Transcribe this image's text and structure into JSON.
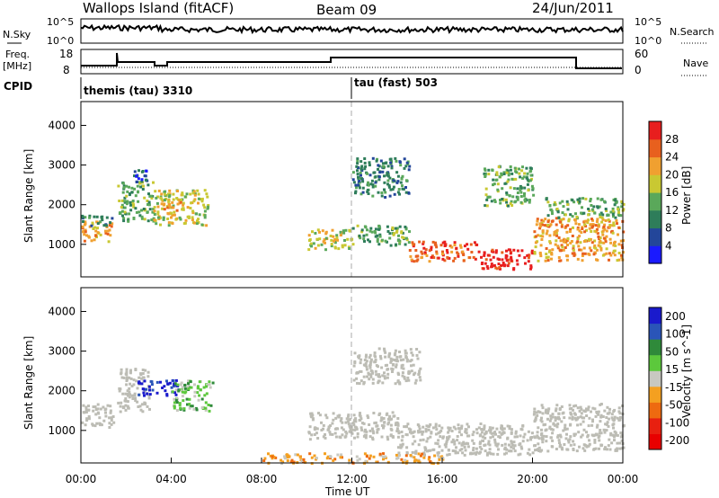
{
  "header": {
    "station": "Wallops Island (fitACF)",
    "beam": "Beam 09",
    "date": "24/Jun/2011"
  },
  "panel_labels": {
    "nsky": "N.Sky",
    "nsearch": "N.Search",
    "freq": "Freq.",
    "freq_unit": "[MHz]",
    "nave": "Nave",
    "cpid": "CPID"
  },
  "small_axes": {
    "noise_left_ticks": [
      "10^5",
      "10^0"
    ],
    "noise_right_ticks": [
      "10^5",
      "10^0"
    ],
    "freq_left_ticks": [
      "18",
      "8"
    ],
    "nave_right_ticks": [
      "60",
      "0"
    ]
  },
  "cpid_segments": [
    {
      "label": "themis (tau) 3310",
      "start_h": 0
    },
    {
      "label": "tau (fast) 503",
      "start_h": 12
    }
  ],
  "colors": {
    "power_scale": [
      "#1a1aff",
      "#23469a",
      "#2e7d5a",
      "#5aa85a",
      "#c9c832",
      "#f0a030",
      "#e8601e",
      "#e81e1e"
    ],
    "velocity_scale": [
      "#1a1acc",
      "#2a55b8",
      "#2f8a3a",
      "#5cc83c",
      "#c8c8c0",
      "#f4a020",
      "#ee6a10",
      "#e82010",
      "#e80000"
    ],
    "ground_scatter": "#bcbcb4"
  },
  "chart_data": [
    {
      "type": "heatmap",
      "name": "power",
      "ylabel": "Slant Range [km]",
      "xlim": [
        "00:00",
        "24:00"
      ],
      "ylim": [
        180,
        4600
      ],
      "y_ticks": [
        1000,
        2000,
        3000,
        4000
      ],
      "colorbar_label": "Power [dB]",
      "colorbar_ticks": [
        4,
        8,
        12,
        16,
        20,
        24,
        28
      ],
      "regions": [
        {
          "t0": 0.0,
          "t1": 1.4,
          "r0": 1100,
          "r1": 1600,
          "level": 5
        },
        {
          "t0": 0.0,
          "t1": 1.4,
          "r0": 1500,
          "r1": 1750,
          "level": 2
        },
        {
          "t0": 1.6,
          "t1": 3.2,
          "r0": 1600,
          "r1": 2600,
          "level": 3
        },
        {
          "t0": 2.3,
          "t1": 2.9,
          "r0": 2600,
          "r1": 2900,
          "level": 1
        },
        {
          "t0": 3.2,
          "t1": 5.6,
          "r0": 1500,
          "r1": 2400,
          "level": 4
        },
        {
          "t0": 3.5,
          "t1": 4.5,
          "r0": 1800,
          "r1": 2200,
          "level": 5
        },
        {
          "t0": 10.0,
          "t1": 12.0,
          "r0": 900,
          "r1": 1400,
          "level": 4
        },
        {
          "t0": 12.0,
          "t1": 14.5,
          "r0": 1000,
          "r1": 1500,
          "level": 3
        },
        {
          "t0": 14.5,
          "t1": 17.5,
          "r0": 600,
          "r1": 1100,
          "level": 6
        },
        {
          "t0": 17.5,
          "t1": 20.0,
          "r0": 400,
          "r1": 900,
          "level": 7
        },
        {
          "t0": 20.0,
          "t1": 24.0,
          "r0": 600,
          "r1": 1700,
          "level": 5
        },
        {
          "t0": 20.5,
          "t1": 24.0,
          "r0": 1700,
          "r1": 2200,
          "level": 3
        },
        {
          "t0": 17.8,
          "t1": 20.0,
          "r0": 2000,
          "r1": 3000,
          "level": 3
        },
        {
          "t0": 12.0,
          "t1": 14.5,
          "r0": 2200,
          "r1": 3200,
          "level": 2
        }
      ]
    },
    {
      "type": "heatmap",
      "name": "velocity",
      "ylabel": "Slant Range [km]",
      "xlabel": "Time UT",
      "xlim": [
        "00:00",
        "24:00"
      ],
      "ylim": [
        180,
        4600
      ],
      "x_ticks": [
        "00:00",
        "04:00",
        "08:00",
        "12:00",
        "16:00",
        "20:00",
        "00:00"
      ],
      "y_ticks": [
        1000,
        2000,
        3000,
        4000
      ],
      "colorbar_label": "Velocity [m s^-1]",
      "colorbar_ticks": [
        200,
        100,
        50,
        15,
        -15,
        -50,
        -100,
        -200
      ],
      "regions": [
        {
          "t0": 0.0,
          "t1": 1.4,
          "r0": 1100,
          "r1": 1700,
          "level": 4
        },
        {
          "t0": 1.6,
          "t1": 3.0,
          "r0": 1500,
          "r1": 2600,
          "level": 4
        },
        {
          "t0": 2.5,
          "t1": 4.3,
          "r0": 1900,
          "r1": 2300,
          "level": 0
        },
        {
          "t0": 4.0,
          "t1": 5.8,
          "r0": 1500,
          "r1": 2300,
          "level": 3
        },
        {
          "t0": 10.0,
          "t1": 14.0,
          "r0": 800,
          "r1": 1500,
          "level": 4
        },
        {
          "t0": 14.0,
          "t1": 20.0,
          "r0": 400,
          "r1": 1200,
          "level": 4
        },
        {
          "t0": 20.0,
          "t1": 24.0,
          "r0": 500,
          "r1": 1700,
          "level": 4
        },
        {
          "t0": 8.0,
          "t1": 16.0,
          "r0": 200,
          "r1": 450,
          "level": 5
        },
        {
          "t0": 12.0,
          "t1": 15.0,
          "r0": 2200,
          "r1": 3100,
          "level": 4
        }
      ]
    }
  ]
}
